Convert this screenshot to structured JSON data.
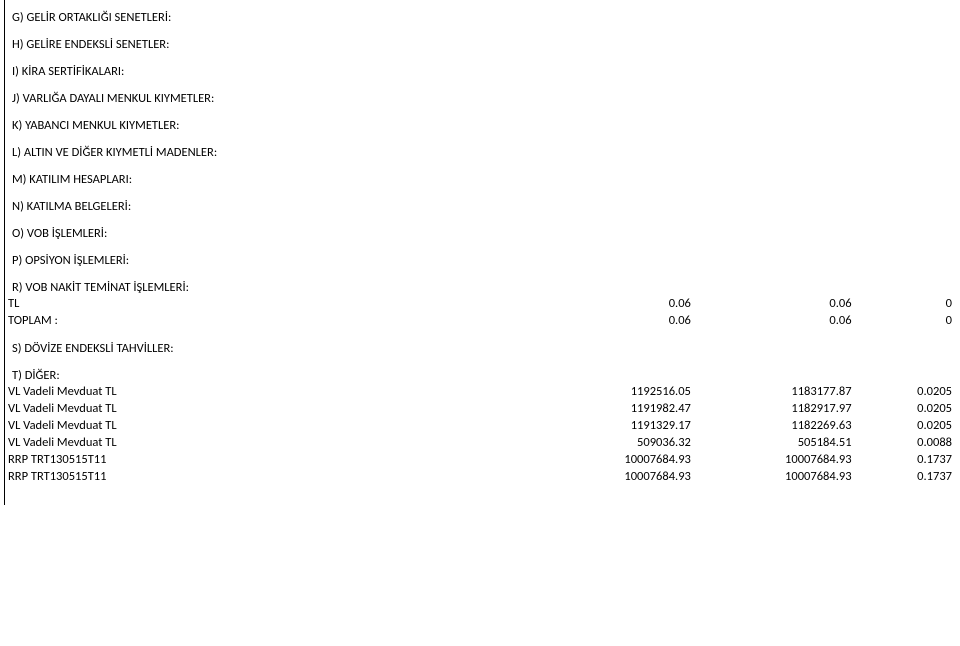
{
  "headings": {
    "g": "G) GELİR ORTAKLIĞI SENETLERİ:",
    "h": "H) GELİRE ENDEKSLİ SENETLER:",
    "i": "I) KİRA SERTİFİKALARI:",
    "j": "J) VARLIĞA DAYALI MENKUL KIYMETLER:",
    "k": "K) YABANCI MENKUL KIYMETLER:",
    "l": "L) ALTIN VE DİĞER KIYMETLİ MADENLER:",
    "m": "M) KATILIM HESAPLARI:",
    "n": "N) KATILMA BELGELERİ:",
    "o": "O) VOB İŞLEMLERİ:",
    "p": "P) OPSİYON İŞLEMLERİ:",
    "r": "R) VOB NAKİT TEMİNAT İŞLEMLERİ:",
    "s": "S) DÖVİZE ENDEKSLİ TAHVİLLER:",
    "t": "T) DİĞER:"
  },
  "r": {
    "rows": [
      {
        "label": "TL",
        "v1": "0.06",
        "v2": "0.06",
        "v3": "0"
      },
      {
        "label": "TOPLAM :",
        "v1": "0.06",
        "v2": "0.06",
        "v3": "0"
      }
    ]
  },
  "t": {
    "rows": [
      {
        "label": "VL Vadeli Mevduat TL",
        "v1": "1192516.05",
        "v2": "1183177.87",
        "v3": "0.0205"
      },
      {
        "label": "VL Vadeli Mevduat TL",
        "v1": "1191982.47",
        "v2": "1182917.97",
        "v3": "0.0205"
      },
      {
        "label": "VL Vadeli Mevduat TL",
        "v1": "1191329.17",
        "v2": "1182269.63",
        "v3": "0.0205"
      },
      {
        "label": "VL Vadeli Mevduat TL",
        "v1": "509036.32",
        "v2": "505184.51",
        "v3": "0.0088"
      },
      {
        "label": "RRP TRT130515T11",
        "v1": "10007684.93",
        "v2": "10007684.93",
        "v3": "0.1737"
      },
      {
        "label": "RRP TRT130515T11",
        "v1": "10007684.93",
        "v2": "10007684.93",
        "v3": "0.1737"
      }
    ]
  }
}
